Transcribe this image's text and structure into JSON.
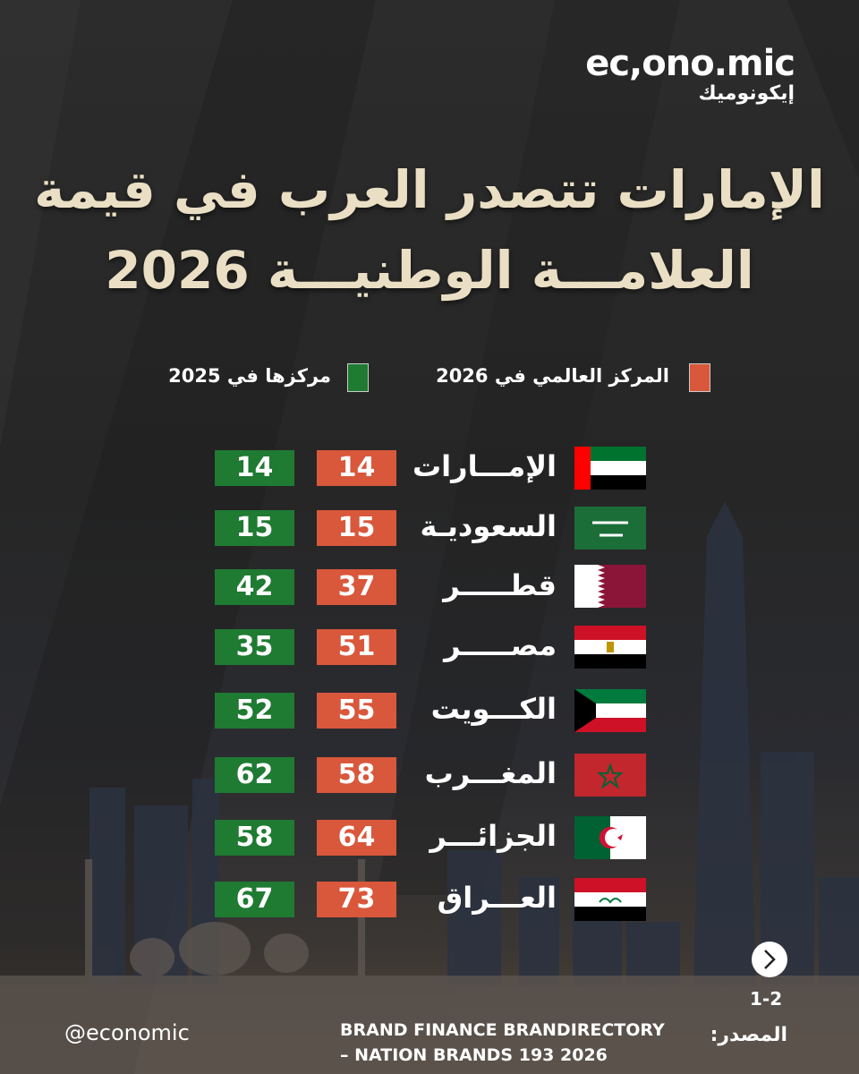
{
  "brand": {
    "name": "ec,ono.mic",
    "arabic": "إيكونوميك"
  },
  "title": {
    "line1": "الإمارات تتصدر العرب في قيمة",
    "line2": "العلامـــة الوطنيـــة 2026"
  },
  "legend": {
    "rank_2026": "المركز العالمي في 2026",
    "rank_2025": "مركزها في 2025"
  },
  "table": {
    "rows": [
      {
        "country": "الإمـــارات",
        "rank_2026": 14,
        "rank_2025": 14
      },
      {
        "country": "السعوديـة",
        "rank_2026": 15,
        "rank_2025": 15
      },
      {
        "country": "قطـــــر",
        "rank_2026": 37,
        "rank_2025": 42
      },
      {
        "country": "مصـــــر",
        "rank_2026": 51,
        "rank_2025": 35
      },
      {
        "country": "الكـــويت",
        "rank_2026": 55,
        "rank_2025": 52
      },
      {
        "country": "المغـــرب",
        "rank_2026": 58,
        "rank_2025": 62
      },
      {
        "country": "الجزائـــر",
        "rank_2026": 64,
        "rank_2025": 58
      },
      {
        "country": "العـــراق",
        "rank_2026": 73,
        "rank_2025": 67
      }
    ]
  },
  "pager": "1-2",
  "source": {
    "label": "المصدر:",
    "line1": "BRAND FINANCE BRANDIRECTORY",
    "line2": "– NATION BRANDS 193 2026"
  },
  "handle": "@economic"
}
